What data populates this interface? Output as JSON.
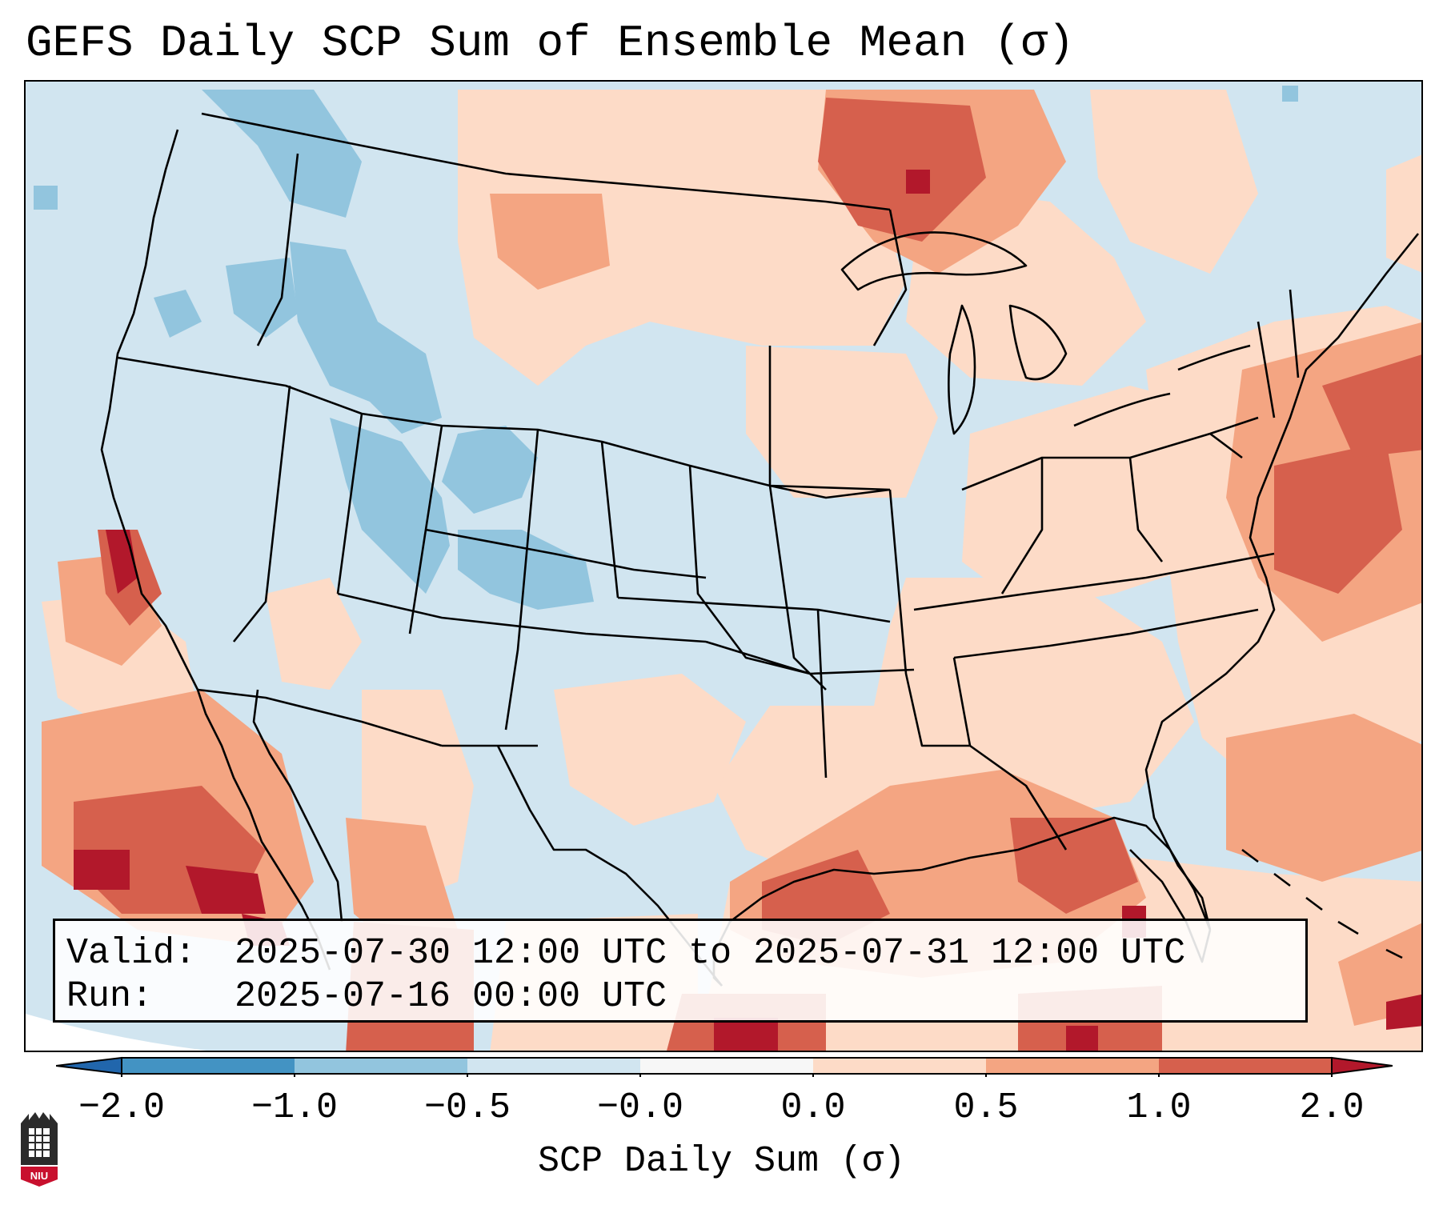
{
  "title": "GEFS Daily SCP Sum of Ensemble Mean (σ)",
  "info": {
    "valid_key": "Valid:",
    "valid_value": "2025-07-30 12:00 UTC to 2025-07-31 12:00 UTC",
    "run_key": "Run:",
    "run_value": "2025-07-16 00:00 UTC"
  },
  "colorbar": {
    "label": "SCP Daily Sum (σ)",
    "ticks": [
      "−2.0",
      "−1.0",
      "−0.5",
      "−0.0",
      "0.0",
      "0.5",
      "1.0",
      "2.0"
    ],
    "colors": [
      "#4393c3",
      "#92c5de",
      "#d1e5f0",
      "#f7f7f7",
      "#fddbc7",
      "#f4a582",
      "#d6604d",
      "#b2182b"
    ],
    "extend": "both"
  },
  "map": {
    "projection": "Lambert Conformal (CONUS)",
    "field_levels": {
      "neg_1_0_to_neg_0_5": "#92c5de",
      "neg_0_5_to_0": "#d1e5f0",
      "0_to_0_5": "#fddbc7",
      "0_5_to_1_0": "#f4a582",
      "1_0_to_2_0": "#d6604d",
      "above_2_0": "#b2182b"
    }
  },
  "logo": {
    "text": "NIU"
  }
}
